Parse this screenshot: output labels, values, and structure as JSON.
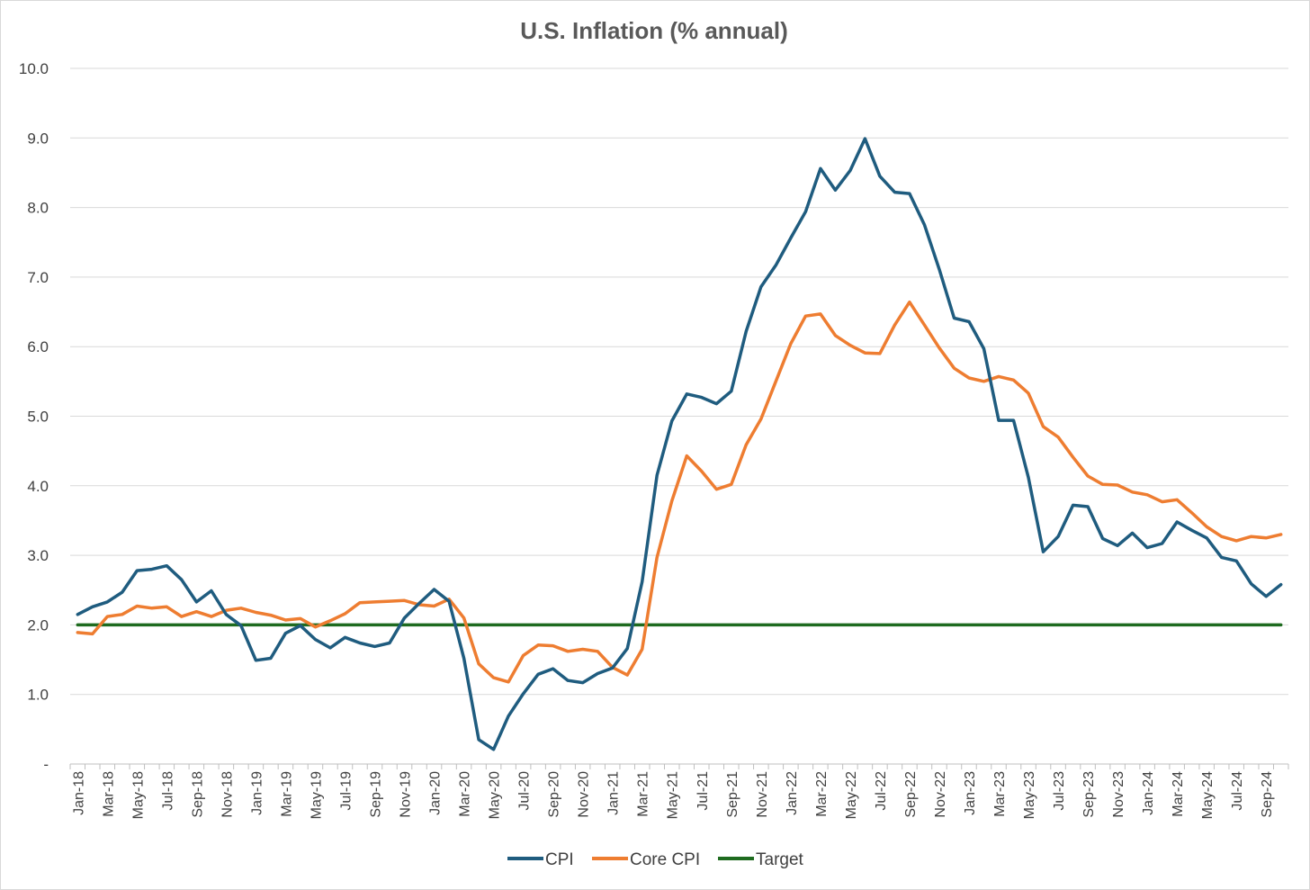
{
  "chart_data": {
    "type": "line",
    "title": "U.S. Inflation (% annual)",
    "xlabel": "",
    "ylabel": "",
    "ylim": [
      0,
      10
    ],
    "ytick_labels": [
      "-",
      "1.0",
      "2.0",
      "3.0",
      "4.0",
      "5.0",
      "6.0",
      "7.0",
      "8.0",
      "9.0",
      "10.0"
    ],
    "grid": true,
    "legend_position": "bottom",
    "x": [
      "Jan-18",
      "Feb-18",
      "Mar-18",
      "Apr-18",
      "May-18",
      "Jun-18",
      "Jul-18",
      "Aug-18",
      "Sep-18",
      "Oct-18",
      "Nov-18",
      "Dec-18",
      "Jan-19",
      "Feb-19",
      "Mar-19",
      "Apr-19",
      "May-19",
      "Jun-19",
      "Jul-19",
      "Aug-19",
      "Sep-19",
      "Oct-19",
      "Nov-19",
      "Dec-19",
      "Jan-20",
      "Feb-20",
      "Mar-20",
      "Apr-20",
      "May-20",
      "Jun-20",
      "Jul-20",
      "Aug-20",
      "Sep-20",
      "Oct-20",
      "Nov-20",
      "Dec-20",
      "Jan-21",
      "Feb-21",
      "Mar-21",
      "Apr-21",
      "May-21",
      "Jun-21",
      "Jul-21",
      "Aug-21",
      "Sep-21",
      "Oct-21",
      "Nov-21",
      "Dec-21",
      "Jan-22",
      "Feb-22",
      "Mar-22",
      "Apr-22",
      "May-22",
      "Jun-22",
      "Jul-22",
      "Aug-22",
      "Sep-22",
      "Oct-22",
      "Nov-22",
      "Dec-22",
      "Jan-23",
      "Feb-23",
      "Mar-23",
      "Apr-23",
      "May-23",
      "Jun-23",
      "Jul-23",
      "Aug-23",
      "Sep-23",
      "Oct-23",
      "Nov-23",
      "Dec-23",
      "Jan-24",
      "Feb-24",
      "Mar-24",
      "Apr-24",
      "May-24",
      "Jun-24",
      "Jul-24",
      "Aug-24",
      "Sep-24",
      "Oct-24"
    ],
    "xtick_labels": [
      "Jan-18",
      "Mar-18",
      "May-18",
      "Jul-18",
      "Sep-18",
      "Nov-18",
      "Jan-19",
      "Mar-19",
      "May-19",
      "Jul-19",
      "Sep-19",
      "Nov-19",
      "Jan-20",
      "Mar-20",
      "May-20",
      "Jul-20",
      "Sep-20",
      "Nov-20",
      "Jan-21",
      "Mar-21",
      "May-21",
      "Jul-21",
      "Sep-21",
      "Nov-21",
      "Jan-22",
      "Mar-22",
      "May-22",
      "Jul-22",
      "Sep-22",
      "Nov-22",
      "Jan-23",
      "Mar-23",
      "May-23",
      "Jul-23",
      "Sep-23",
      "Nov-23",
      "Jan-24",
      "Mar-24",
      "May-24",
      "Jul-24",
      "Sep-24"
    ],
    "series": [
      {
        "name": "CPI",
        "color": "#1f5c7f",
        "values": [
          2.15,
          2.26,
          2.33,
          2.47,
          2.78,
          2.8,
          2.85,
          2.65,
          2.33,
          2.49,
          2.15,
          1.99,
          1.49,
          1.52,
          1.88,
          1.99,
          1.79,
          1.67,
          1.82,
          1.74,
          1.69,
          1.74,
          2.1,
          2.31,
          2.51,
          2.34,
          1.52,
          0.35,
          0.21,
          0.69,
          1.01,
          1.29,
          1.37,
          1.2,
          1.17,
          1.3,
          1.38,
          1.66,
          2.62,
          4.15,
          4.93,
          5.32,
          5.27,
          5.18,
          5.36,
          6.22,
          6.86,
          7.17,
          7.56,
          7.94,
          8.56,
          8.25,
          8.53,
          8.99,
          8.45,
          8.22,
          8.2,
          7.75,
          7.11,
          6.41,
          6.36,
          5.97,
          4.94,
          4.94,
          4.12,
          3.05,
          3.27,
          3.72,
          3.7,
          3.24,
          3.14,
          3.32,
          3.11,
          3.17,
          3.48,
          3.36,
          3.25,
          2.97,
          2.92,
          2.59,
          2.41,
          2.58
        ]
      },
      {
        "name": "Core CPI",
        "color": "#ee7d31",
        "values": [
          1.89,
          1.87,
          2.12,
          2.15,
          2.27,
          2.24,
          2.26,
          2.12,
          2.19,
          2.12,
          2.21,
          2.24,
          2.18,
          2.14,
          2.07,
          2.09,
          1.97,
          2.06,
          2.16,
          2.32,
          2.33,
          2.34,
          2.35,
          2.29,
          2.27,
          2.37,
          2.1,
          1.44,
          1.24,
          1.18,
          1.56,
          1.71,
          1.7,
          1.62,
          1.65,
          1.62,
          1.39,
          1.28,
          1.65,
          2.97,
          3.78,
          4.43,
          4.21,
          3.95,
          4.02,
          4.59,
          4.96,
          5.5,
          6.04,
          6.44,
          6.47,
          6.16,
          6.02,
          5.91,
          5.9,
          6.31,
          6.64,
          6.31,
          5.98,
          5.69,
          5.55,
          5.5,
          5.57,
          5.52,
          5.33,
          4.85,
          4.7,
          4.41,
          4.14,
          4.02,
          4.01,
          3.91,
          3.87,
          3.77,
          3.8,
          3.61,
          3.41,
          3.27,
          3.21,
          3.27,
          3.25,
          3.3
        ]
      },
      {
        "name": "Target",
        "color": "#1e6b1f",
        "values": [
          2,
          2,
          2,
          2,
          2,
          2,
          2,
          2,
          2,
          2,
          2,
          2,
          2,
          2,
          2,
          2,
          2,
          2,
          2,
          2,
          2,
          2,
          2,
          2,
          2,
          2,
          2,
          2,
          2,
          2,
          2,
          2,
          2,
          2,
          2,
          2,
          2,
          2,
          2,
          2,
          2,
          2,
          2,
          2,
          2,
          2,
          2,
          2,
          2,
          2,
          2,
          2,
          2,
          2,
          2,
          2,
          2,
          2,
          2,
          2,
          2,
          2,
          2,
          2,
          2,
          2,
          2,
          2,
          2,
          2,
          2,
          2,
          2,
          2,
          2,
          2,
          2,
          2,
          2,
          2,
          2,
          2
        ]
      }
    ]
  }
}
